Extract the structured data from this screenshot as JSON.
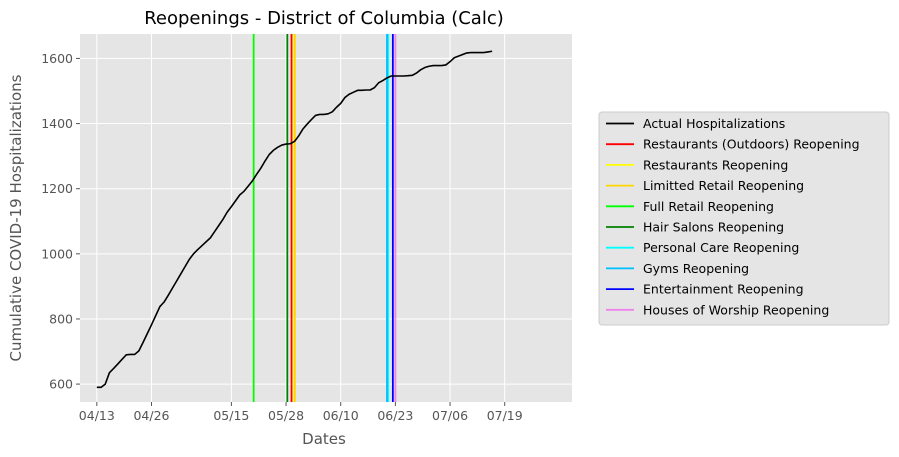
{
  "chart_data": {
    "type": "line",
    "title": "Reopenings - District of Columbia (Calc)",
    "xlabel": "Dates",
    "ylabel": "Cumulative COVID-19 Hospitalizations",
    "grid": true,
    "legend_position": "right",
    "x_ticks": [
      "04/13",
      "04/26",
      "05/15",
      "05/28",
      "06/10",
      "06/23",
      "07/06",
      "07/19"
    ],
    "y_ticks": [
      600,
      800,
      1000,
      1200,
      1400,
      1600
    ],
    "xlim_days": [
      -4,
      113
    ],
    "ylim": [
      545,
      1675
    ],
    "series": [
      {
        "name": "Actual Hospitalizations",
        "color": "#000000",
        "points": [
          [
            0,
            590
          ],
          [
            1,
            590
          ],
          [
            2,
            600
          ],
          [
            3,
            635
          ],
          [
            4,
            648
          ],
          [
            5,
            662
          ],
          [
            6,
            676
          ],
          [
            7,
            690
          ],
          [
            8,
            691
          ],
          [
            9,
            691
          ],
          [
            10,
            702
          ],
          [
            11,
            728
          ],
          [
            12,
            755
          ],
          [
            13,
            782
          ],
          [
            14,
            810
          ],
          [
            15,
            838
          ],
          [
            16,
            852
          ],
          [
            17,
            873
          ],
          [
            18,
            895
          ],
          [
            19,
            917
          ],
          [
            20,
            939
          ],
          [
            21,
            961
          ],
          [
            22,
            983
          ],
          [
            23,
            1000
          ],
          [
            24,
            1013
          ],
          [
            25,
            1025
          ],
          [
            26,
            1037
          ],
          [
            27,
            1049
          ],
          [
            28,
            1068
          ],
          [
            29,
            1087
          ],
          [
            30,
            1106
          ],
          [
            31,
            1128
          ],
          [
            32,
            1145
          ],
          [
            33,
            1163
          ],
          [
            34,
            1181
          ],
          [
            35,
            1192
          ],
          [
            36,
            1208
          ],
          [
            37,
            1224
          ],
          [
            38,
            1244
          ],
          [
            39,
            1263
          ],
          [
            40,
            1285
          ],
          [
            41,
            1305
          ],
          [
            42,
            1318
          ],
          [
            43,
            1327
          ],
          [
            44,
            1334
          ],
          [
            45,
            1337
          ],
          [
            46,
            1338
          ],
          [
            47,
            1345
          ],
          [
            48,
            1362
          ],
          [
            49,
            1383
          ],
          [
            50,
            1398
          ],
          [
            51,
            1412
          ],
          [
            52,
            1425
          ],
          [
            53,
            1428
          ],
          [
            54,
            1428
          ],
          [
            55,
            1430
          ],
          [
            56,
            1436
          ],
          [
            57,
            1450
          ],
          [
            58,
            1462
          ],
          [
            59,
            1480
          ],
          [
            60,
            1490
          ],
          [
            61,
            1496
          ],
          [
            62,
            1502
          ],
          [
            63,
            1502
          ],
          [
            64,
            1503
          ],
          [
            65,
            1503
          ],
          [
            66,
            1510
          ],
          [
            67,
            1525
          ],
          [
            68,
            1532
          ],
          [
            69,
            1540
          ],
          [
            70,
            1546
          ],
          [
            71,
            1546
          ],
          [
            72,
            1546
          ],
          [
            73,
            1546
          ],
          [
            74,
            1547
          ],
          [
            75,
            1548
          ],
          [
            76,
            1555
          ],
          [
            77,
            1565
          ],
          [
            78,
            1572
          ],
          [
            79,
            1576
          ],
          [
            80,
            1578
          ],
          [
            81,
            1578
          ],
          [
            82,
            1578
          ],
          [
            83,
            1580
          ],
          [
            84,
            1590
          ],
          [
            85,
            1602
          ],
          [
            86,
            1607
          ],
          [
            87,
            1612
          ],
          [
            88,
            1617
          ],
          [
            89,
            1618
          ],
          [
            90,
            1618
          ],
          [
            91,
            1618
          ],
          [
            92,
            1618
          ],
          [
            93,
            1620
          ],
          [
            94,
            1622
          ]
        ]
      }
    ],
    "vertical_lines": [
      {
        "name": "Restaurants (Outdoors) Reopening",
        "color": "#ff0000",
        "day": 46.3
      },
      {
        "name": "Restaurants Reopening",
        "color": "#ffff00",
        "day": 46.9
      },
      {
        "name": "Limitted Retail Reopening",
        "color": "#ffd700",
        "day": 47.1
      },
      {
        "name": "Full Retail Reopening",
        "color": "#00ff00",
        "day": 37.3
      },
      {
        "name": "Hair Salons Reopening",
        "color": "#008000",
        "day": 45.3
      },
      {
        "name": "Personal Care Reopening",
        "color": "#00ffff",
        "day": 69.3
      },
      {
        "name": "Gyms Reopening",
        "color": "#00bfff",
        "day": 69.0
      },
      {
        "name": "Entertainment Reopening",
        "color": "#0000ff",
        "day": 70.4
      },
      {
        "name": "Houses of Worship Reopening",
        "color": "#ee82ee",
        "day": 71.0
      }
    ],
    "legend_entries": [
      {
        "name": "Actual Hospitalizations",
        "color": "#000000"
      },
      {
        "name": "Restaurants (Outdoors) Reopening",
        "color": "#ff0000"
      },
      {
        "name": "Restaurants Reopening",
        "color": "#ffff00"
      },
      {
        "name": "Limitted Retail Reopening",
        "color": "#ffd700"
      },
      {
        "name": "Full Retail Reopening",
        "color": "#00ff00"
      },
      {
        "name": "Hair Salons Reopening",
        "color": "#008000"
      },
      {
        "name": "Personal Care Reopening",
        "color": "#00ffff"
      },
      {
        "name": "Gyms Reopening",
        "color": "#00bfff"
      },
      {
        "name": "Entertainment Reopening",
        "color": "#0000ff"
      },
      {
        "name": "Houses of Worship Reopening",
        "color": "#ee82ee"
      }
    ]
  }
}
